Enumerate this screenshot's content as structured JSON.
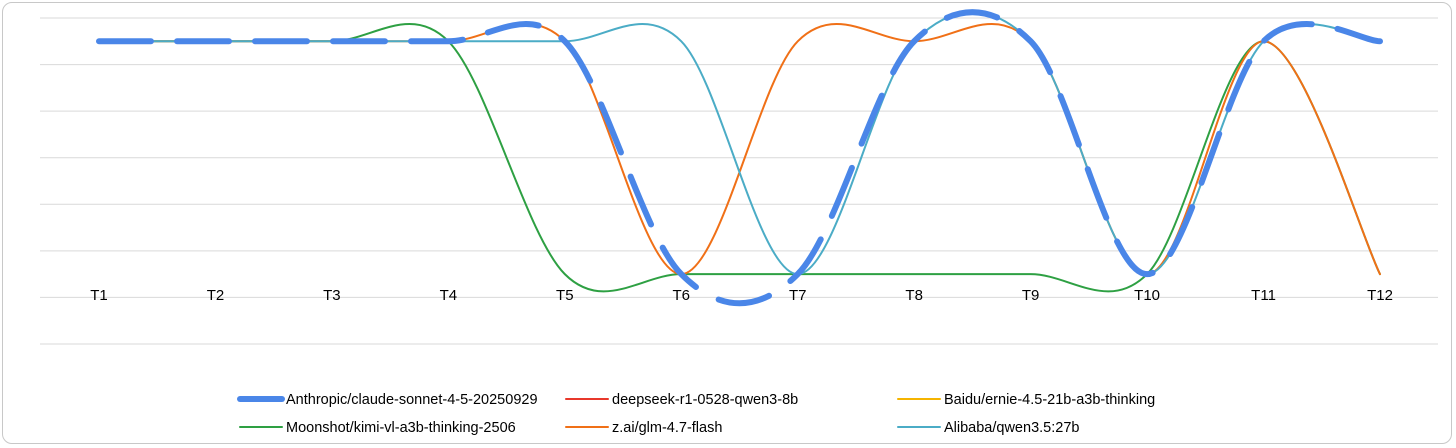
{
  "chart_data": {
    "type": "line",
    "smooth": true,
    "categories": [
      "T1",
      "T2",
      "T3",
      "T4",
      "T5",
      "T6",
      "T7",
      "T8",
      "T9",
      "T10",
      "T11",
      "T12"
    ],
    "ylim": [
      -1.5,
      5.5
    ],
    "grid": "horizontal",
    "y_tick_labels_shown": false,
    "legend_position": "bottom",
    "series": [
      {
        "name": "Anthropic/claude-sonnet-4-5-20250929",
        "color": "#4A86E8",
        "style": "thick-dashed",
        "values": [
          5,
          5,
          5,
          5,
          5,
          0,
          0,
          5,
          5,
          0,
          5,
          5
        ]
      },
      {
        "name": "deepseek-r1-0528-qwen3-8b",
        "color": "#E8382B",
        "style": "solid",
        "values": [
          null,
          null,
          null,
          null,
          null,
          null,
          null,
          null,
          null,
          null,
          null,
          null
        ]
      },
      {
        "name": "Baidu/ernie-4.5-21b-a3b-thinking",
        "color": "#F5B400",
        "style": "solid",
        "values": [
          null,
          null,
          null,
          null,
          null,
          null,
          null,
          null,
          null,
          null,
          null,
          null
        ]
      },
      {
        "name": "Moonshot/kimi-vl-a3b-thinking-2506",
        "color": "#2EA043",
        "style": "solid",
        "values": [
          5,
          5,
          5,
          5,
          0,
          0,
          0,
          0,
          0,
          0,
          5,
          0
        ]
      },
      {
        "name": "z.ai/glm-4.7-flash",
        "color": "#F07017",
        "style": "solid",
        "values": [
          5,
          5,
          5,
          5,
          5,
          0,
          5,
          5,
          5,
          0,
          5,
          0
        ]
      },
      {
        "name": "Alibaba/qwen3.5:27b",
        "color": "#4BACC6",
        "style": "solid",
        "values": [
          5,
          5,
          5,
          5,
          5,
          5,
          0,
          5,
          5,
          0,
          5,
          5
        ]
      }
    ]
  }
}
